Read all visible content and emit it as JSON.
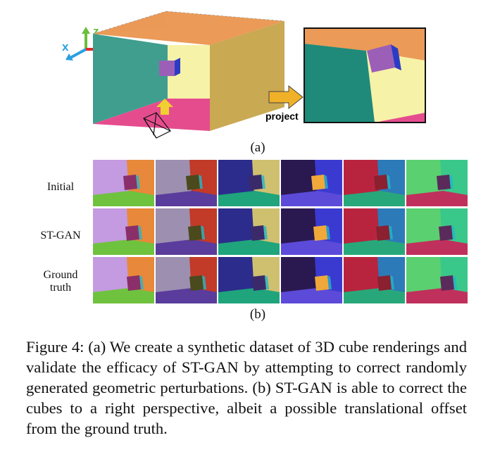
{
  "figure_a": {
    "axes": {
      "x": "x",
      "y": "y",
      "z": "z"
    },
    "project_label": "project",
    "sub_label": "(a)",
    "colors": {
      "left_wall": "#3f9e8e",
      "back_wall": "#f6f2a8",
      "ceiling": "#eb9a57",
      "floor": "#e54c8e",
      "right_wall": "#c9a952",
      "cube_front": "#9c5fb8",
      "cube_side": "#2b3cc4",
      "arrow": "#f0b128"
    }
  },
  "figure_b": {
    "sub_label": "(b)",
    "row_labels": [
      "Initial",
      "ST-GAN",
      "Ground truth"
    ],
    "scene_colors": [
      {
        "left": "#c49ae0",
        "right": "#e8883a",
        "floor": "#6fc23e",
        "cube": "#8a2f6a"
      },
      {
        "left": "#9c8fb0",
        "right": "#c23a28",
        "floor": "#5a3c9c",
        "cube": "#4a4a1c"
      },
      {
        "left": "#2c2c8c",
        "right": "#cfc070",
        "floor": "#1fa47c",
        "cube": "#3a2a6a"
      },
      {
        "left": "#2a1850",
        "right": "#3a3ad0",
        "floor": "#5c4ad8",
        "cube": "#f0a83a"
      },
      {
        "left": "#b8243e",
        "right": "#2c7ab8",
        "floor": "#28a87a",
        "cube": "#8a2030"
      },
      {
        "left": "#5ad070",
        "right": "#3ac88a",
        "floor": "#c0305c",
        "cube": "#5a2a5a"
      }
    ]
  },
  "caption": "Figure 4: (a) We create a synthetic dataset of 3D cube renderings and validate the efficacy of ST-GAN by attempting to correct randomly generated geometric perturbations. (b) ST-GAN is able to correct the cubes to a right perspective, albeit a possible translational offset from the ground truth."
}
